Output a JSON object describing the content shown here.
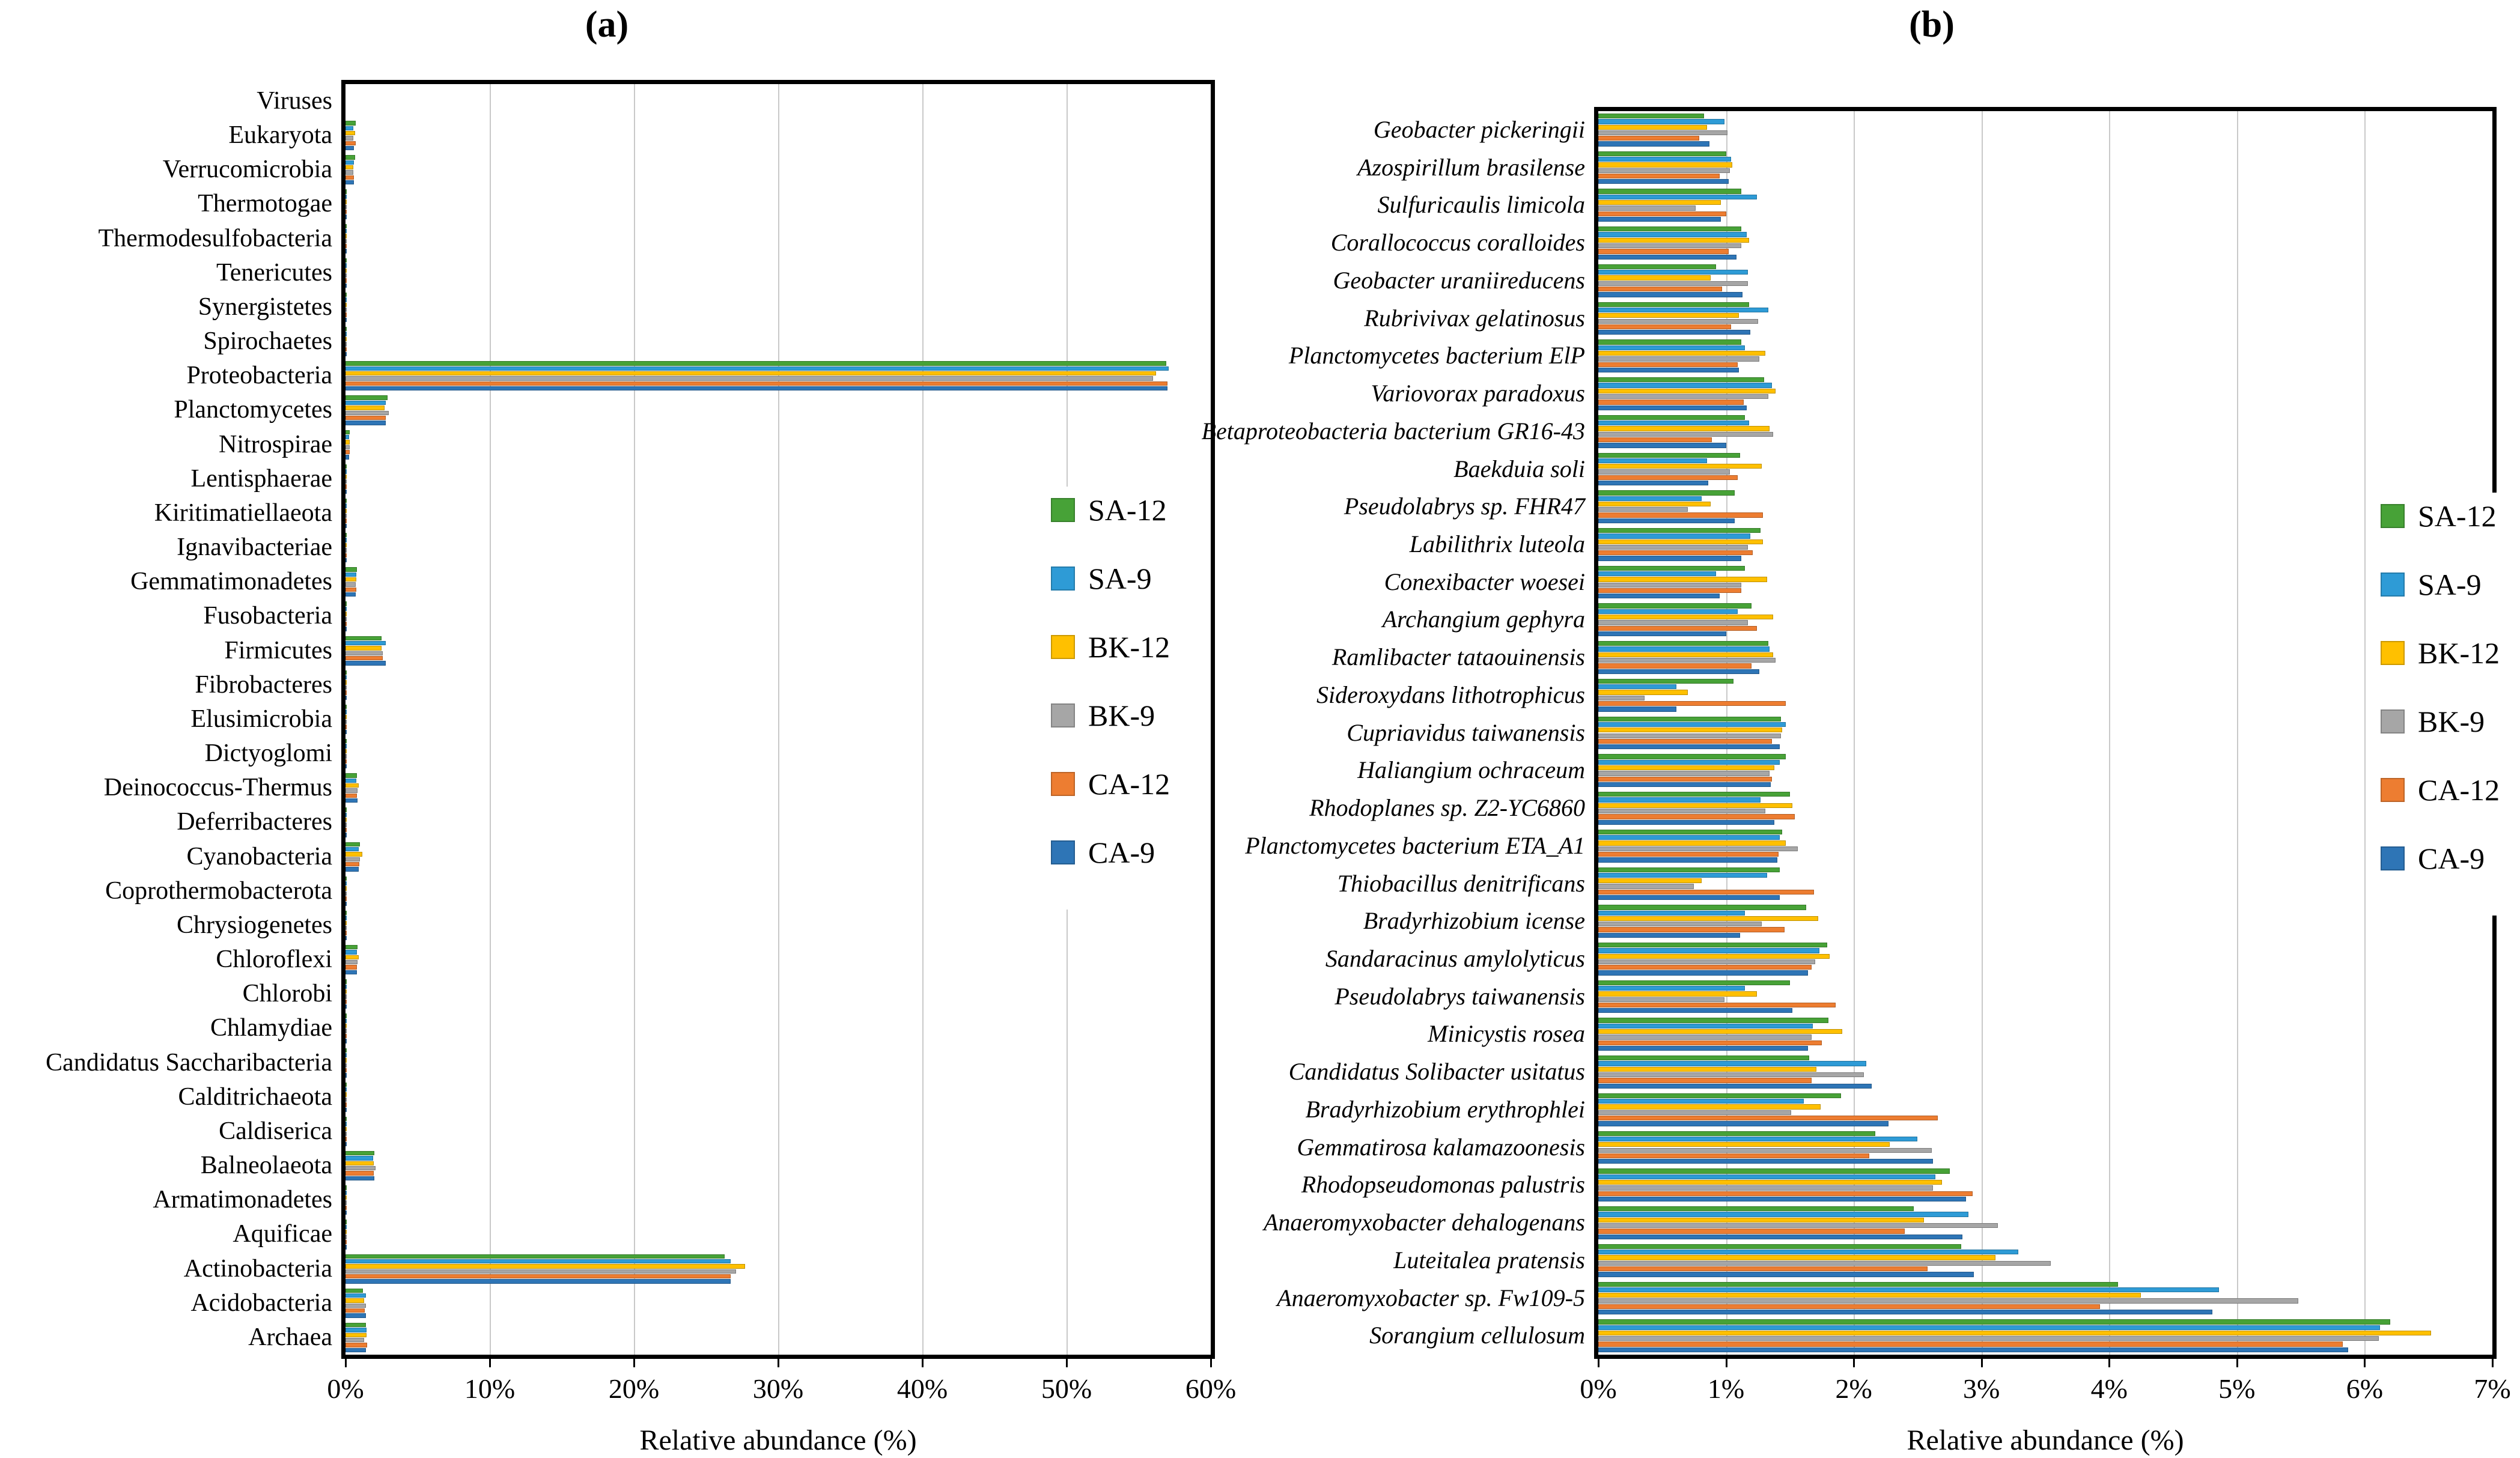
{
  "figure": {
    "background": "#ffffff",
    "xlabel": "Relative abundance (%)"
  },
  "legend": {
    "items": [
      {
        "label": "SA-12",
        "color": "#47A237"
      },
      {
        "label": "SA-9",
        "color": "#2E9BD6"
      },
      {
        "label": "BK-12",
        "color": "#FFC000"
      },
      {
        "label": "BK-9",
        "color": "#A6A6A6"
      },
      {
        "label": "CA-12",
        "color": "#ED7D31"
      },
      {
        "label": "CA-9",
        "color": "#2E75B6"
      }
    ]
  },
  "chart_data": [
    {
      "id": "a",
      "type": "bar",
      "orientation": "horizontal",
      "title": "(a)",
      "xlabel": "Relative abundance (%)",
      "xlim": [
        0,
        60
      ],
      "x_ticks": [
        "0%",
        "10%",
        "20%",
        "30%",
        "40%",
        "50%",
        "60%"
      ],
      "grid": true,
      "legend_position": "inside-right",
      "category_style": "normal",
      "categories": [
        "Viruses",
        "Eukaryota",
        "Verrucomicrobia",
        "Thermotogae",
        "Thermodesulfobacteria",
        "Tenericutes",
        "Synergistetes",
        "Spirochaetes",
        "Proteobacteria",
        "Planctomycetes",
        "Nitrospirae",
        "Lentisphaerae",
        "Kiritimatiellaeota",
        "Ignavibacteriae",
        "Gemmatimonadetes",
        "Fusobacteria",
        "Firmicutes",
        "Fibrobacteres",
        "Elusimicrobia",
        "Dictyoglomi",
        "Deinococcus-Thermus",
        "Deferribacteres",
        "Cyanobacteria",
        "Coprothermobacterota",
        "Chrysiogenetes",
        "Chloroflexi",
        "Chlorobi",
        "Chlamydiae",
        "Candidatus Saccharibacteria",
        "Calditrichaeota",
        "Caldiserica",
        "Balneolaeota",
        "Armatimonadetes",
        "Aquificae",
        "Actinobacteria",
        "Acidobacteria",
        "Archaea"
      ],
      "series": [
        {
          "name": "SA-12",
          "color": "#47A237",
          "values": [
            0,
            0.7,
            0.65,
            0.05,
            0.03,
            0.02,
            0.04,
            0.08,
            56.9,
            2.9,
            0.3,
            0.05,
            0.05,
            0.1,
            0.8,
            0.05,
            2.5,
            0.05,
            0.05,
            0.02,
            0.8,
            0.05,
            1.0,
            0.02,
            0.02,
            0.85,
            0.1,
            0.05,
            0.05,
            0.04,
            0.02,
            2.0,
            0.1,
            0.05,
            26.3,
            1.2,
            1.4
          ]
        },
        {
          "name": "SA-9",
          "color": "#2E9BD6",
          "values": [
            0,
            0.55,
            0.6,
            0.04,
            0.02,
            0.02,
            0.03,
            0.07,
            57.1,
            2.8,
            0.25,
            0.04,
            0.04,
            0.08,
            0.75,
            0.04,
            2.8,
            0.04,
            0.04,
            0.02,
            0.75,
            0.04,
            0.9,
            0.02,
            0.02,
            0.8,
            0.08,
            0.04,
            0.04,
            0.03,
            0.02,
            1.9,
            0.08,
            0.04,
            26.7,
            1.4,
            1.45
          ]
        },
        {
          "name": "BK-12",
          "color": "#FFC000",
          "values": [
            0,
            0.65,
            0.55,
            0.04,
            0.02,
            0.02,
            0.03,
            0.07,
            56.2,
            2.7,
            0.3,
            0.04,
            0.04,
            0.08,
            0.75,
            0.04,
            2.5,
            0.04,
            0.04,
            0.02,
            0.9,
            0.04,
            1.15,
            0.02,
            0.02,
            0.9,
            0.08,
            0.04,
            0.04,
            0.03,
            0.02,
            1.95,
            0.08,
            0.04,
            27.7,
            1.3,
            1.45
          ]
        },
        {
          "name": "BK-9",
          "color": "#A6A6A6",
          "values": [
            0,
            0.55,
            0.55,
            0.04,
            0.02,
            0.02,
            0.03,
            0.07,
            56.0,
            3.0,
            0.28,
            0.04,
            0.04,
            0.08,
            0.7,
            0.04,
            2.6,
            0.04,
            0.04,
            0.02,
            0.85,
            0.04,
            1.0,
            0.02,
            0.02,
            0.85,
            0.08,
            0.04,
            0.04,
            0.03,
            0.02,
            2.1,
            0.08,
            0.04,
            27.1,
            1.4,
            1.3
          ]
        },
        {
          "name": "CA-12",
          "color": "#ED7D31",
          "values": [
            0,
            0.7,
            0.6,
            0.04,
            0.02,
            0.02,
            0.03,
            0.07,
            57.0,
            2.8,
            0.3,
            0.04,
            0.04,
            0.08,
            0.75,
            0.04,
            2.6,
            0.04,
            0.04,
            0.02,
            0.8,
            0.04,
            0.95,
            0.02,
            0.02,
            0.8,
            0.08,
            0.04,
            0.04,
            0.03,
            0.02,
            1.95,
            0.08,
            0.04,
            26.7,
            1.35,
            1.5
          ]
        },
        {
          "name": "CA-9",
          "color": "#2E75B6",
          "values": [
            0,
            0.6,
            0.6,
            0.04,
            0.02,
            0.02,
            0.03,
            0.07,
            57.0,
            2.8,
            0.25,
            0.04,
            0.04,
            0.08,
            0.7,
            0.04,
            2.8,
            0.04,
            0.04,
            0.02,
            0.85,
            0.04,
            0.9,
            0.02,
            0.02,
            0.8,
            0.08,
            0.04,
            0.04,
            0.03,
            0.02,
            2.0,
            0.08,
            0.04,
            26.7,
            1.4,
            1.4
          ]
        }
      ]
    },
    {
      "id": "b",
      "type": "bar",
      "orientation": "horizontal",
      "title": "(b)",
      "xlabel": "Relative abundance (%)",
      "xlim": [
        0,
        7
      ],
      "x_ticks": [
        "0%",
        "1%",
        "2%",
        "3%",
        "4%",
        "5%",
        "6%",
        "7%"
      ],
      "grid": true,
      "legend_position": "inside-right",
      "category_style": "italic",
      "categories": [
        "Geobacter pickeringii",
        "Azospirillum brasilense",
        "Sulfuricaulis limicola",
        "Corallococcus coralloides",
        "Geobacter uraniireducens",
        "Rubrivivax gelatinosus",
        "Planctomycetes bacterium ElP",
        "Variovorax paradoxus",
        "Betaproteobacteria bacterium GR16-43",
        "Baekduia soli",
        "Pseudolabrys sp. FHR47",
        "Labilithrix luteola",
        "Conexibacter woesei",
        "Archangium gephyra",
        "Ramlibacter tataouinensis",
        "Sideroxydans lithotrophicus",
        "Cupriavidus taiwanensis",
        "Haliangium ochraceum",
        "Rhodoplanes sp. Z2-YC6860",
        "Planctomycetes bacterium ETA_A1",
        "Thiobacillus denitrificans",
        "Bradyrhizobium icense",
        "Sandaracinus amylolyticus",
        "Pseudolabrys taiwanensis",
        "Minicystis rosea",
        "Candidatus Solibacter usitatus",
        "Bradyrhizobium erythrophlei",
        "Gemmatirosa kalamazoonesis",
        "Rhodopseudomonas palustris",
        "Anaeromyxobacter dehalogenans",
        "Luteitalea pratensis",
        "Anaeromyxobacter sp. Fw109-5",
        "Sorangium cellulosum"
      ],
      "series": [
        {
          "name": "SA-12",
          "color": "#47A237",
          "values": [
            0.83,
            1.0,
            1.12,
            1.12,
            0.92,
            1.18,
            1.12,
            1.3,
            1.15,
            1.11,
            1.07,
            1.27,
            1.15,
            1.2,
            1.33,
            1.06,
            1.43,
            1.47,
            1.5,
            1.44,
            1.42,
            1.63,
            1.79,
            1.5,
            1.8,
            1.65,
            1.9,
            2.17,
            2.75,
            2.47,
            2.84,
            4.07,
            6.2
          ]
        },
        {
          "name": "SA-9",
          "color": "#2E9BD6",
          "values": [
            0.99,
            1.04,
            1.24,
            1.16,
            1.17,
            1.33,
            1.15,
            1.36,
            1.18,
            0.85,
            0.81,
            1.19,
            0.92,
            1.09,
            1.34,
            0.61,
            1.47,
            1.42,
            1.27,
            1.42,
            1.32,
            1.15,
            1.73,
            1.15,
            1.68,
            2.1,
            1.61,
            2.5,
            2.64,
            2.9,
            3.29,
            4.86,
            6.12
          ]
        },
        {
          "name": "BK-12",
          "color": "#FFC000",
          "values": [
            0.85,
            1.05,
            0.96,
            1.18,
            0.88,
            1.1,
            1.31,
            1.39,
            1.34,
            1.28,
            0.88,
            1.29,
            1.32,
            1.37,
            1.37,
            0.7,
            1.44,
            1.38,
            1.52,
            1.47,
            0.81,
            1.72,
            1.81,
            1.24,
            1.91,
            1.71,
            1.74,
            2.28,
            2.69,
            2.55,
            3.11,
            4.25,
            6.52
          ]
        },
        {
          "name": "BK-9",
          "color": "#A6A6A6",
          "values": [
            1.01,
            1.03,
            0.76,
            1.12,
            1.17,
            1.25,
            1.26,
            1.33,
            1.37,
            1.03,
            0.7,
            1.17,
            1.12,
            1.17,
            1.39,
            0.36,
            1.43,
            1.34,
            1.31,
            1.56,
            0.75,
            1.28,
            1.7,
            0.99,
            1.67,
            2.08,
            1.51,
            2.61,
            2.62,
            3.13,
            3.54,
            5.48,
            6.11
          ]
        },
        {
          "name": "CA-12",
          "color": "#ED7D31",
          "values": [
            0.79,
            0.95,
            1.0,
            1.02,
            0.97,
            1.04,
            1.09,
            1.14,
            0.89,
            1.09,
            1.29,
            1.21,
            1.12,
            1.24,
            1.2,
            1.47,
            1.36,
            1.36,
            1.54,
            1.41,
            1.69,
            1.46,
            1.67,
            1.86,
            1.75,
            1.67,
            2.66,
            2.12,
            2.93,
            2.4,
            2.58,
            3.93,
            5.83
          ]
        },
        {
          "name": "CA-9",
          "color": "#2E75B6",
          "values": [
            0.87,
            1.02,
            0.96,
            1.08,
            1.13,
            1.19,
            1.1,
            1.16,
            1.0,
            0.86,
            1.07,
            1.12,
            0.95,
            1.0,
            1.26,
            0.61,
            1.42,
            1.35,
            1.38,
            1.4,
            1.42,
            1.11,
            1.64,
            1.52,
            1.64,
            2.14,
            2.27,
            2.62,
            2.88,
            2.85,
            2.94,
            4.81,
            5.87
          ]
        }
      ]
    }
  ]
}
